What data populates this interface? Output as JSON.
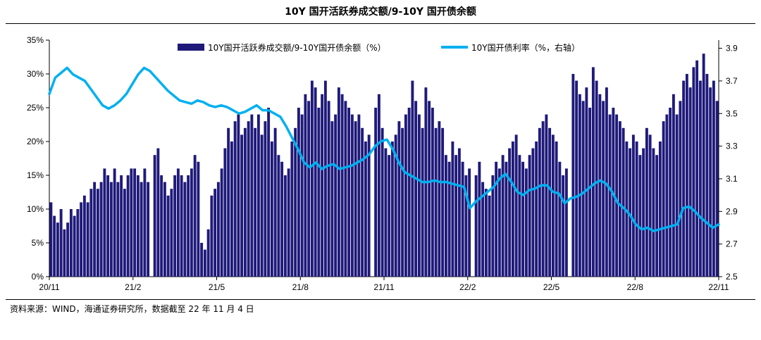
{
  "header": {
    "title": "10Y 国开活跃券成交额/9-10Y 国开债余额"
  },
  "footer": {
    "source": "资料来源：WIND，海通证券研究所，数据截至 22 年 11 月 4 日"
  },
  "colors": {
    "bar": "#1f1a7a",
    "line": "#00b0f0",
    "axis": "#000000"
  },
  "chart_data": {
    "type": "bar+line",
    "title": "10Y 国开活跃券成交额/9-10Y 国开债余额",
    "legend_position": "top",
    "x_labels": [
      "20/11",
      "21/2",
      "21/5",
      "21/8",
      "21/11",
      "22/2",
      "22/5",
      "22/8",
      "22/11"
    ],
    "y_left": {
      "ticks": [
        "0%",
        "5%",
        "10%",
        "15%",
        "20%",
        "25%",
        "30%",
        "35%"
      ],
      "range": [
        0,
        35
      ]
    },
    "y_right": {
      "ticks": [
        "2.5",
        "2.7",
        "2.9",
        "3.1",
        "3.3",
        "3.5",
        "3.7",
        "3.9"
      ],
      "range": [
        2.5,
        3.95
      ]
    },
    "series": [
      {
        "name": "10Y国开活跃券成交额/9-10Y国开债余额（%）",
        "type": "bar",
        "axis": "left",
        "values": [
          11,
          9,
          8,
          10,
          7,
          8,
          10,
          9,
          10,
          11,
          12,
          11,
          13,
          14,
          13,
          14,
          16,
          15,
          14,
          16,
          14,
          15,
          13,
          15,
          16,
          16,
          15,
          14,
          16,
          14,
          0,
          18,
          19,
          15,
          14,
          12,
          13,
          15,
          16,
          15,
          14,
          15,
          16,
          18,
          17,
          5,
          4,
          7,
          12,
          13,
          14,
          16,
          19,
          22,
          20,
          23,
          24,
          21,
          22,
          23,
          24,
          22,
          24,
          21,
          23,
          25,
          20,
          22,
          18,
          17,
          15,
          16,
          20,
          22,
          25,
          24,
          27,
          26,
          29,
          28,
          25,
          27,
          29,
          26,
          23,
          24,
          28,
          27,
          26,
          25,
          24,
          23,
          24,
          22,
          20,
          21,
          0,
          25,
          27,
          22,
          19,
          18,
          20,
          21,
          23,
          22,
          24,
          25,
          29,
          26,
          24,
          22,
          28,
          26,
          25,
          22,
          23,
          22,
          18,
          17,
          20,
          18,
          19,
          17,
          15,
          16,
          0,
          15,
          17,
          14,
          13,
          12,
          15,
          17,
          16,
          18,
          17,
          19,
          20,
          21,
          18,
          17,
          16,
          18,
          19,
          20,
          22,
          23,
          24,
          22,
          21,
          20,
          17,
          15,
          16,
          0,
          30,
          29,
          27,
          26,
          28,
          25,
          31,
          29,
          27,
          26,
          28,
          24,
          25,
          24,
          23,
          22,
          20,
          19,
          21,
          20,
          18,
          19,
          22,
          21,
          19,
          18,
          20,
          23,
          24,
          25,
          27,
          24,
          26,
          29,
          30,
          28,
          31,
          32,
          29,
          33,
          30,
          28,
          29,
          26
        ]
      },
      {
        "name": "10Y国开债利率（%，右轴）",
        "type": "line",
        "axis": "right",
        "values": [
          3.62,
          3.72,
          3.75,
          3.78,
          3.74,
          3.72,
          3.7,
          3.65,
          3.6,
          3.55,
          3.53,
          3.55,
          3.58,
          3.62,
          3.68,
          3.74,
          3.78,
          3.76,
          3.72,
          3.68,
          3.64,
          3.61,
          3.58,
          3.57,
          3.56,
          3.58,
          3.57,
          3.55,
          3.54,
          3.55,
          3.54,
          3.52,
          3.5,
          3.51,
          3.53,
          3.55,
          3.52,
          3.52,
          3.5,
          3.48,
          3.42,
          3.35,
          3.28,
          3.2,
          3.17,
          3.2,
          3.16,
          3.18,
          3.19,
          3.16,
          3.17,
          3.18,
          3.2,
          3.22,
          3.25,
          3.3,
          3.33,
          3.34,
          3.28,
          3.2,
          3.14,
          3.12,
          3.1,
          3.08,
          3.08,
          3.09,
          3.08,
          3.08,
          3.07,
          3.06,
          3.05,
          2.92,
          2.96,
          2.99,
          3.02,
          3.05,
          3.1,
          3.13,
          3.08,
          3.02,
          3.0,
          3.03,
          3.04,
          3.06,
          3.06,
          3.02,
          3.01,
          2.95,
          2.98,
          2.99,
          3.01,
          3.04,
          3.07,
          3.09,
          3.07,
          3.02,
          2.95,
          2.92,
          2.88,
          2.82,
          2.79,
          2.8,
          2.78,
          2.79,
          2.8,
          2.81,
          2.82,
          2.92,
          2.93,
          2.9,
          2.86,
          2.83,
          2.8,
          2.82
        ],
        "start_label": "20/11",
        "end_label": "22/11"
      }
    ]
  }
}
